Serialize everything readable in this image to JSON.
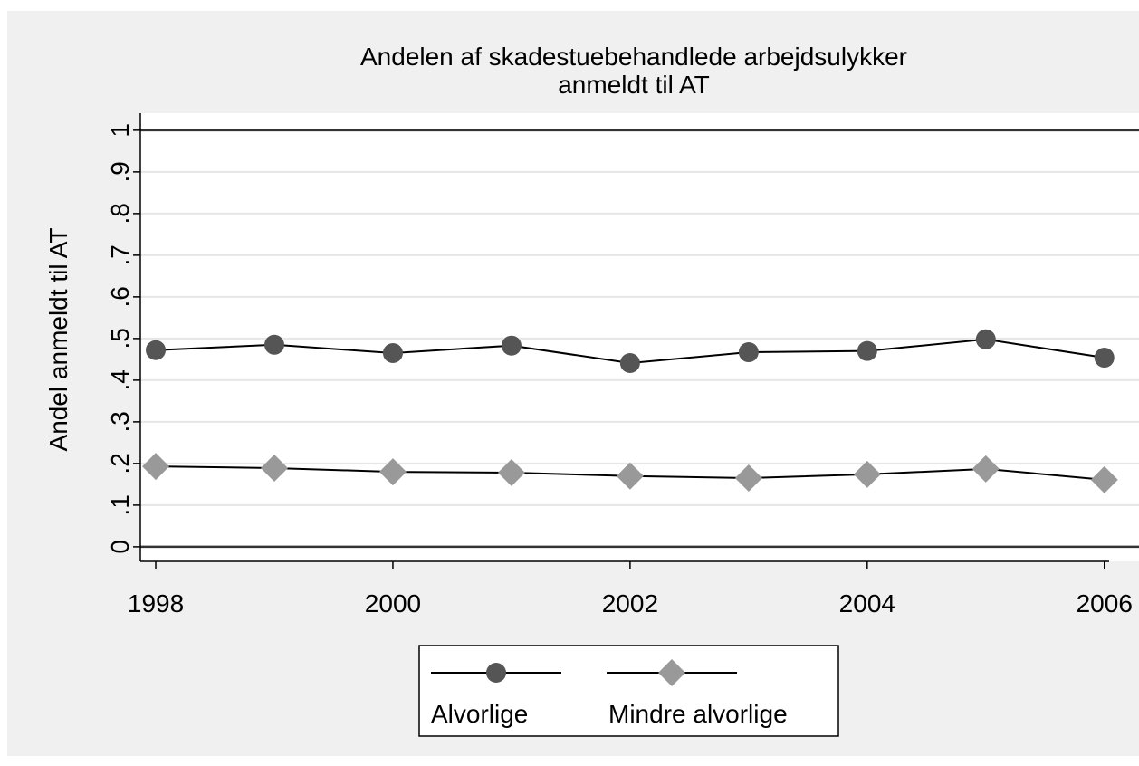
{
  "chart_data": {
    "type": "line",
    "title": [
      "Andelen af skadestuebehandlede arbejdsulykker",
      "anmeldt til AT"
    ],
    "y_label": "Andel anmeldt til AT",
    "x": [
      1998,
      1999,
      2000,
      2001,
      2002,
      2003,
      2004,
      2005,
      2006
    ],
    "series": [
      {
        "name": "Alvorlige",
        "color": "#555555",
        "marker": "circle",
        "values": [
          0.472,
          0.485,
          0.465,
          0.483,
          0.441,
          0.467,
          0.47,
          0.498,
          0.454
        ]
      },
      {
        "name": "Mindre alvorlige",
        "color": "#999999",
        "marker": "diamond",
        "values": [
          0.193,
          0.189,
          0.18,
          0.178,
          0.17,
          0.165,
          0.174,
          0.187,
          0.161
        ]
      }
    ],
    "xlim": [
      1997.87,
      2006.04
    ],
    "xticks": [
      1998,
      2000,
      2002,
      2004,
      2006
    ],
    "ylim": [
      -0.035,
      1.041
    ],
    "yticks": [
      0,
      {
        "value": 0.1,
        "label": ".1"
      },
      {
        "value": 0.2,
        "label": ".2"
      },
      {
        "value": 0.3,
        "label": ".3"
      },
      {
        "value": 0.4,
        "label": ".4"
      },
      {
        "value": 0.5,
        "label": ".5"
      },
      {
        "value": 0.6,
        "label": ".6"
      },
      {
        "value": 0.7,
        "label": ".7"
      },
      {
        "value": 0.8,
        "label": ".8"
      },
      {
        "value": 0.9,
        "label": ".9"
      },
      1
    ],
    "ylines": [
      0,
      1
    ],
    "grid": true
  }
}
